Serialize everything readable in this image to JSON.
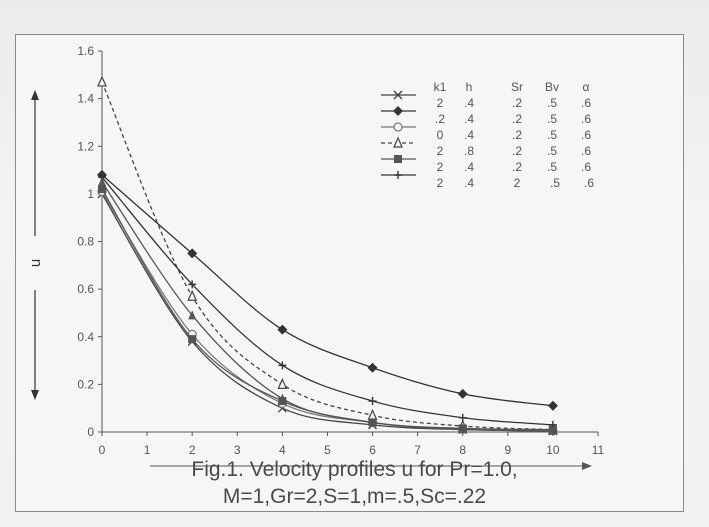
{
  "chart_data": {
    "type": "line",
    "ylabel": "u",
    "x_ticks": [
      "0",
      "1",
      "2",
      "3",
      "4",
      "5",
      "6",
      "7",
      "8",
      "9",
      "10",
      "11"
    ],
    "y_ticks": [
      "0",
      "0.2",
      "0.4",
      "0.6",
      "0.8",
      "1",
      "1.2",
      "1.4",
      "1.6"
    ],
    "xlim": [
      0,
      11
    ],
    "ylim": [
      0,
      1.6
    ],
    "grid": false,
    "legend_position": "top-right",
    "legend_header": [
      "k1",
      "h",
      "Sr",
      "Bv",
      "α"
    ],
    "x": [
      0,
      2,
      4,
      6,
      8,
      10
    ],
    "series": [
      {
        "params": [
          "2",
          ".4",
          ".2",
          ".5",
          ".6"
        ],
        "values": [
          1.0,
          0.38,
          0.1,
          0.03,
          0.01,
          0.005
        ],
        "marker": "x",
        "dash": "solid",
        "color": "#444444"
      },
      {
        "params": [
          ".2",
          ".4",
          ".2",
          ".5",
          ".6"
        ],
        "values": [
          1.08,
          0.75,
          0.43,
          0.27,
          0.16,
          0.11
        ],
        "marker": "diamond",
        "dash": "solid",
        "color": "#333333"
      },
      {
        "params": [
          "0",
          ".4",
          ".2",
          ".5",
          ".6"
        ],
        "values": [
          1.01,
          0.41,
          0.12,
          0.04,
          0.012,
          0.005
        ],
        "marker": "circle-open",
        "dash": "solid",
        "color": "#777777"
      },
      {
        "params": [
          "2",
          ".8",
          ".2",
          ".5",
          ".6"
        ],
        "values": [
          1.47,
          0.57,
          0.2,
          0.07,
          0.025,
          0.01
        ],
        "marker": "triangle-open",
        "dash": "dashed",
        "color": "#444444"
      },
      {
        "params": [
          "2",
          ".4",
          ".2",
          ".5",
          ".6"
        ],
        "values": [
          1.02,
          0.39,
          0.13,
          0.04,
          0.015,
          0.01
        ],
        "marker": "square",
        "dash": "solid",
        "color": "#555555"
      },
      {
        "params": [
          "2",
          ".4",
          "2",
          ".5",
          ".6"
        ],
        "values": [
          1.07,
          0.62,
          0.28,
          0.13,
          0.06,
          0.03
        ],
        "marker": "plus",
        "dash": "solid",
        "color": "#333333"
      },
      {
        "params": [],
        "values": [
          1.05,
          0.49,
          0.14,
          0.04,
          0.012,
          0.005
        ],
        "marker": "triangle",
        "dash": "solid",
        "color": "#555555"
      }
    ]
  },
  "caption": {
    "line1": "Fig.1. Velocity profiles u  for Pr=1.0,",
    "line2": "M=1,Gr=2,S=1,m=.5,Sc=.22"
  },
  "colors": {
    "axis": "#555555",
    "frame": "#8a8a8a"
  }
}
